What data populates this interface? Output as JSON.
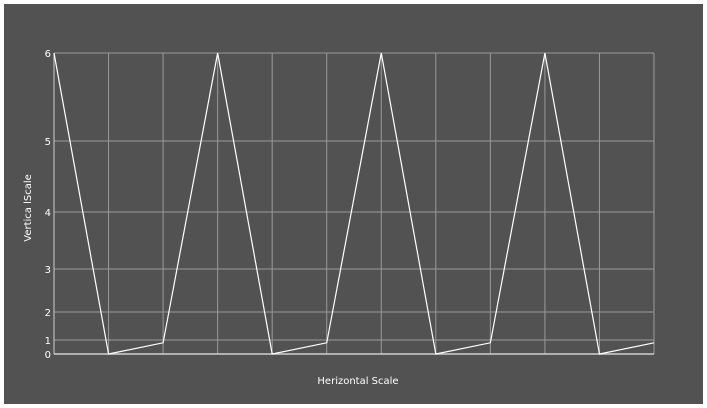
{
  "chart_data": {
    "type": "line",
    "title": "",
    "xlabel": "Herizontal Scale",
    "ylabel": "Vertica lScale",
    "x": [
      0,
      1,
      2,
      3,
      4,
      5,
      6,
      7,
      8,
      9,
      10,
      11
    ],
    "series": [
      {
        "values": [
          6,
          0,
          0.8,
          6,
          0,
          0.8,
          6,
          0,
          0.8,
          6,
          0,
          0.8
        ]
      }
    ],
    "y_ticks": [
      "0",
      "1",
      "2",
      "3",
      "4",
      "5",
      "6"
    ],
    "ylim": [
      0,
      6
    ],
    "xlim": [
      0,
      11
    ],
    "grid": true,
    "legend": "none",
    "colors": {
      "background": "#525252",
      "line": "#ffffff",
      "grid": "#9a9a9a"
    }
  }
}
